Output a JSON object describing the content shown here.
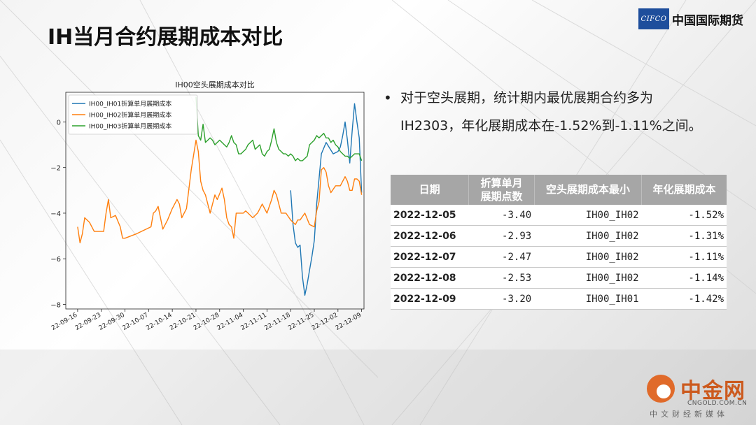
{
  "slide": {
    "title": "IH当月合约展期成本对比"
  },
  "logo": {
    "mark": "CIFCO",
    "name": "中国国际期货"
  },
  "bullet": {
    "line1": "对于空头展期，统计期内最优展期合约多为",
    "line2": "IH2303，年化展期成本在-1.52%到-1.11%之间。"
  },
  "table": {
    "headers": [
      "日期",
      "折算单月\n展期点数",
      "空头展期成本最小",
      "年化展期成本"
    ],
    "rows": [
      [
        "2022-12-05",
        "-3.40",
        "IH00_IH02",
        "-1.52%"
      ],
      [
        "2022-12-06",
        "-2.93",
        "IH00_IH02",
        "-1.31%"
      ],
      [
        "2022-12-07",
        "-2.47",
        "IH00_IH02",
        "-1.11%"
      ],
      [
        "2022-12-08",
        "-2.53",
        "IH00_IH02",
        "-1.14%"
      ],
      [
        "2022-12-09",
        "-3.20",
        "IH00_IH01",
        "-1.42%"
      ]
    ]
  },
  "watermark": {
    "name": "中金网",
    "url": "CNGOLD.COM.CN",
    "sub": "中文财经新媒体"
  },
  "chart_data": {
    "type": "line",
    "title": "IH00空头展期成本对比",
    "xlabel": "",
    "ylabel": "",
    "yticks": [
      "0",
      "−2",
      "−4",
      "−6",
      "−8"
    ],
    "ytick_values": [
      0,
      -2,
      -4,
      -6,
      -8
    ],
    "ylim": [
      -8.2,
      1.3
    ],
    "xlim": [
      -2,
      124
    ],
    "xticks": [
      "22-09-16",
      "22-09-23",
      "22-09-30",
      "22-10-07",
      "22-10-14",
      "22-10-21",
      "22-10-28",
      "22-11-04",
      "22-11-11",
      "22-11-18",
      "22-11-25",
      "22-12-02",
      "22-12-09"
    ],
    "xtick_positions": [
      3,
      13,
      23,
      33,
      43,
      53,
      63,
      73,
      83,
      93,
      103,
      113,
      123
    ],
    "legend_position": "top-left",
    "series": [
      {
        "name": "IH00_IH01折算单月展期成本",
        "color": "#1f77b4",
        "x": [
          93,
          94,
          95,
          96,
          97,
          98,
          99,
          100,
          101,
          102,
          103,
          104,
          106,
          108,
          111,
          113,
          114,
          115,
          116,
          117,
          118,
          119,
          120,
          121,
          122,
          123
        ],
        "y": [
          -3.0,
          -4.5,
          -5.3,
          -5.5,
          -5.4,
          -6.8,
          -7.6,
          -7.1,
          -6.5,
          -5.9,
          -5.2,
          -3.6,
          -1.4,
          -0.9,
          -1.4,
          -1.3,
          -1.1,
          -0.6,
          0.0,
          -0.8,
          -1.8,
          -0.4,
          0.8,
          0.0,
          -0.7,
          -3.1
        ]
      },
      {
        "name": "IH00_IH02折算单月展期成本",
        "color": "#ff7f0e",
        "x": [
          3,
          4,
          5,
          6,
          7,
          8,
          10,
          12,
          13,
          14,
          15,
          16,
          17,
          19,
          21,
          22,
          23,
          28,
          34,
          35,
          36,
          37,
          39,
          41,
          43,
          45,
          46,
          47,
          49,
          51,
          53,
          54,
          55,
          56,
          57,
          59,
          60,
          61,
          62,
          64,
          65,
          66,
          67,
          68,
          69,
          70,
          72,
          73,
          74,
          75,
          77,
          79,
          81,
          83,
          85,
          86,
          87,
          89,
          91,
          93,
          95,
          96,
          97,
          99,
          101,
          103,
          104,
          105,
          106,
          107,
          108,
          109,
          110,
          112,
          114,
          116,
          117,
          118,
          119,
          120,
          121,
          122,
          123
        ],
        "y": [
          -4.6,
          -5.3,
          -4.9,
          -4.2,
          -4.3,
          -4.4,
          -4.8,
          -4.8,
          -4.8,
          -4.8,
          -4.0,
          -3.4,
          -4.2,
          -4.1,
          -4.6,
          -5.1,
          -5.1,
          -4.9,
          -4.6,
          -4.0,
          -3.9,
          -3.7,
          -4.7,
          -4.3,
          -3.8,
          -3.4,
          -3.6,
          -4.2,
          -3.8,
          -2.1,
          -0.8,
          -1.3,
          -2.6,
          -3.0,
          -3.2,
          -4.0,
          -3.6,
          -3.2,
          -3.4,
          -2.9,
          -3.4,
          -4.2,
          -4.5,
          -4.6,
          -5.1,
          -4.0,
          -4.0,
          -4.0,
          -3.9,
          -4.0,
          -4.2,
          -4.0,
          -3.6,
          -4.0,
          -3.4,
          -3.0,
          -3.2,
          -4.0,
          -4.0,
          -4.3,
          -4.5,
          -4.3,
          -4.3,
          -4.0,
          -4.5,
          -4.6,
          -3.9,
          -3.5,
          -2.1,
          -2.0,
          -2.2,
          -2.8,
          -3.1,
          -2.8,
          -2.8,
          -2.4,
          -2.6,
          -3.0,
          -3.0,
          -2.5,
          -2.5,
          -2.6,
          -3.2
        ]
      },
      {
        "name": "IH00_IH03折算单月展期成本",
        "color": "#2ca02c",
        "x": [
          53,
          54,
          55,
          56,
          57,
          58,
          59,
          60,
          61,
          62,
          63,
          64,
          65,
          66,
          67,
          68,
          69,
          70,
          71,
          72,
          73,
          74,
          75,
          76,
          77,
          78,
          79,
          80,
          81,
          82,
          83,
          84,
          85,
          86,
          87,
          88,
          89,
          90,
          91,
          92,
          93,
          94,
          95,
          96,
          97,
          98,
          99,
          100,
          101,
          102,
          103,
          104,
          105,
          106,
          107,
          108,
          109,
          110,
          111,
          112,
          113,
          114,
          115,
          116,
          117,
          118,
          119,
          120,
          121,
          122,
          123
        ],
        "y": [
          1.1,
          -0.6,
          -0.8,
          -0.1,
          -0.9,
          -0.8,
          -0.7,
          -0.8,
          -1.0,
          -0.9,
          -0.8,
          -0.9,
          -1.0,
          -1.1,
          -0.9,
          -0.6,
          -0.9,
          -1.0,
          -1.4,
          -1.4,
          -1.3,
          -1.2,
          -1.0,
          -0.9,
          -0.8,
          -1.2,
          -1.1,
          -1.0,
          -1.4,
          -1.5,
          -1.3,
          -1.2,
          -0.8,
          -0.3,
          -0.9,
          -1.2,
          -1.3,
          -1.4,
          -1.4,
          -1.5,
          -1.4,
          -1.5,
          -1.7,
          -1.6,
          -1.7,
          -1.7,
          -1.6,
          -1.5,
          -1.0,
          -0.9,
          -0.8,
          -0.6,
          -0.7,
          -0.6,
          -0.5,
          -0.7,
          -0.7,
          -0.9,
          -0.8,
          -1.0,
          -1.1,
          -1.3,
          -1.4,
          -1.5,
          -1.5,
          -1.6,
          -1.5,
          -1.4,
          -1.4,
          -1.4,
          -1.7
        ]
      }
    ]
  }
}
